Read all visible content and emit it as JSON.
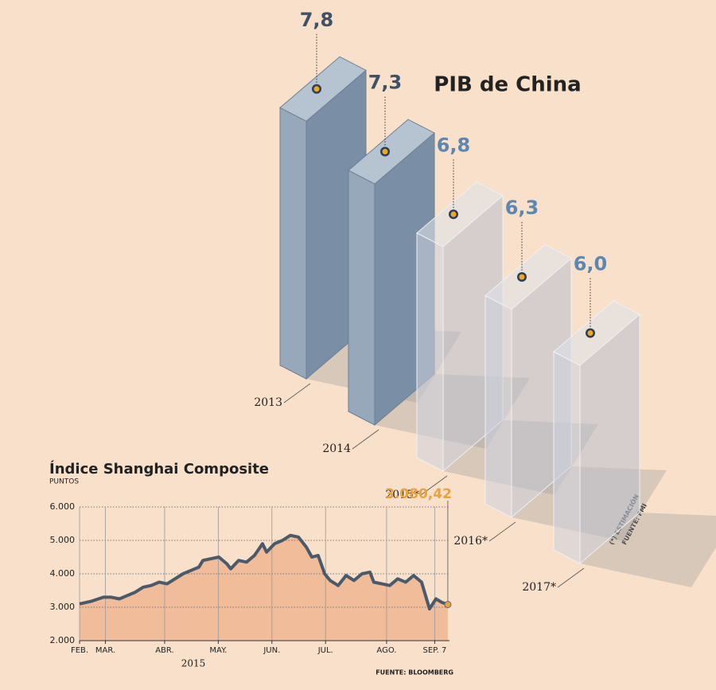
{
  "chart_data": [
    {
      "type": "bar3d",
      "title": "PIB de China",
      "categories": [
        "2013",
        "2014",
        "2015*",
        "2016*",
        "2017*"
      ],
      "values": [
        7.8,
        7.3,
        6.8,
        6.3,
        6.0
      ],
      "value_labels": [
        "7,8",
        "7,3",
        "6,8",
        "6,3",
        "6,0"
      ],
      "estimated": [
        false,
        false,
        true,
        true,
        true
      ],
      "notes": [
        "(*) ESTIMACIÓN",
        "FUENTE: FMI"
      ]
    },
    {
      "type": "area",
      "title": "Índice Shanghai Composite",
      "subtitle": "PUNTOS",
      "x": [
        0,
        6.5,
        12.9,
        17.2,
        21.5,
        25.8,
        30.1,
        34.4,
        38.7,
        43,
        47.3,
        51.6,
        55.9,
        60.2,
        64.5,
        66.7,
        71,
        75.3,
        79.6,
        81.7,
        86,
        90.3,
        94.6,
        98.9,
        101.1,
        105.4,
        109.7,
        114,
        118.3,
        122.6,
        125.6,
        129,
        132.5,
        135.5,
        139.8,
        144.1,
        148.4,
        152.7,
        157,
        159.1,
        163.4,
        167.7,
        172,
        176.3,
        180.6,
        184.9,
        189.2,
        192.7,
        195.7,
        199.1
      ],
      "values": [
        3100,
        3180,
        3300,
        3300,
        3250,
        3350,
        3450,
        3600,
        3650,
        3750,
        3700,
        3850,
        4000,
        4100,
        4200,
        4400,
        4450,
        4500,
        4300,
        4150,
        4400,
        4350,
        4550,
        4900,
        4650,
        4900,
        5000,
        5150,
        5100,
        4800,
        4500,
        4550,
        4000,
        3800,
        3650,
        3950,
        3800,
        4000,
        4050,
        3750,
        3700,
        3650,
        3850,
        3750,
        3950,
        3750,
        2950,
        3250,
        3150,
        3080.42
      ],
      "last_value_label": "3.080,42",
      "color": "#4a5a6b",
      "fill": "#f0bc9a",
      "marker_color": "#e8a33c",
      "xlim": [
        0,
        200
      ],
      "xticks": [
        {
          "value": 0,
          "label": "FEB."
        },
        {
          "value": 14,
          "label": "MAR."
        },
        {
          "value": 46,
          "label": "ABR."
        },
        {
          "value": 75,
          "label": "MAY."
        },
        {
          "value": 104,
          "label": "JUN."
        },
        {
          "value": 133,
          "label": "JUL."
        },
        {
          "value": 166,
          "label": "AGO."
        },
        {
          "value": 192,
          "label": "SEP. 7"
        }
      ],
      "xlabel": "2015",
      "ylim": [
        2000,
        6000
      ],
      "yticks": [
        {
          "value": 2000,
          "label": "2.000"
        },
        {
          "value": 3000,
          "label": "3.000"
        },
        {
          "value": 4000,
          "label": "4.000"
        },
        {
          "value": 5000,
          "label": "5.000"
        },
        {
          "value": 6000,
          "label": "6.000"
        }
      ],
      "grid": true,
      "source": "FUENTE: BLOOMBERG"
    }
  ]
}
